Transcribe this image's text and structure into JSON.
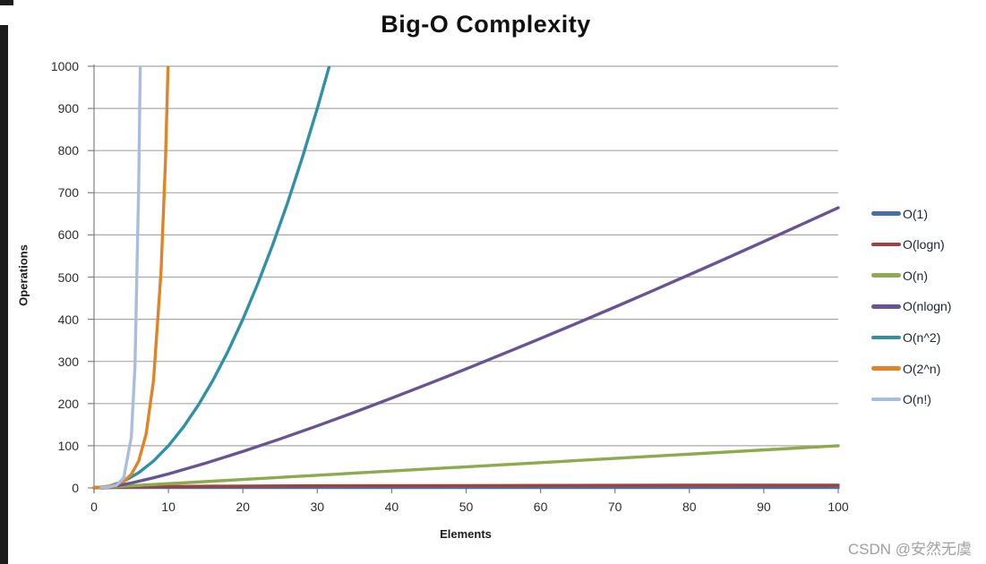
{
  "page": {
    "watermark": "CSDN @安然无虞"
  },
  "colors": {
    "grid": "#a8a8a8",
    "axis": "#808080",
    "title_text": "#101010",
    "tick_text": "#2d2d2d",
    "legend_text": "#1d2533",
    "watermark_text": "#a0a0a0",
    "left_strip": "#1c1c1c"
  },
  "chart_data": {
    "type": "line",
    "title": "Big-O Complexity",
    "xlabel": "Elements",
    "ylabel": "Operations",
    "xlim": [
      0,
      100
    ],
    "ylim": [
      0,
      1000
    ],
    "x_ticks": [
      0,
      10,
      20,
      30,
      40,
      50,
      60,
      70,
      80,
      90,
      100
    ],
    "y_ticks": [
      0,
      100,
      200,
      300,
      400,
      500,
      600,
      700,
      800,
      900,
      1000
    ],
    "grid": "horizontal-only",
    "legend_position": "right",
    "series": [
      {
        "name": "O(1)",
        "color": "#4472a4",
        "points": [
          [
            0,
            1
          ],
          [
            100,
            1
          ]
        ]
      },
      {
        "name": "O(logn)",
        "color": "#a2403d",
        "points": [
          [
            1,
            0
          ],
          [
            2,
            1
          ],
          [
            3,
            1.58
          ],
          [
            4,
            2
          ],
          [
            6,
            2.58
          ],
          [
            8,
            3
          ],
          [
            12,
            3.58
          ],
          [
            16,
            4
          ],
          [
            24,
            4.58
          ],
          [
            32,
            5
          ],
          [
            48,
            5.58
          ],
          [
            64,
            6
          ],
          [
            80,
            6.32
          ],
          [
            100,
            6.64
          ]
        ]
      },
      {
        "name": "O(n)",
        "color": "#8caa4e",
        "points": [
          [
            0,
            0
          ],
          [
            100,
            100
          ]
        ]
      },
      {
        "name": "O(nlogn)",
        "color": "#675591",
        "points": [
          [
            1,
            0
          ],
          [
            2,
            2
          ],
          [
            3,
            4.8
          ],
          [
            5,
            11.6
          ],
          [
            8,
            24
          ],
          [
            10,
            33.2
          ],
          [
            15,
            58.6
          ],
          [
            20,
            86.4
          ],
          [
            25,
            116.1
          ],
          [
            30,
            147.2
          ],
          [
            35,
            179.5
          ],
          [
            40,
            212.9
          ],
          [
            45,
            247.2
          ],
          [
            50,
            282.2
          ],
          [
            55,
            318.0
          ],
          [
            60,
            354.4
          ],
          [
            65,
            391.3
          ],
          [
            70,
            428.8
          ],
          [
            75,
            467.1
          ],
          [
            80,
            505.8
          ],
          [
            85,
            544.9
          ],
          [
            90,
            584.3
          ],
          [
            95,
            624.2
          ],
          [
            100,
            664.4
          ]
        ]
      },
      {
        "name": "O(n^2)",
        "color": "#3090a6",
        "points": [
          [
            0,
            0
          ],
          [
            2,
            4
          ],
          [
            4,
            16
          ],
          [
            6,
            36
          ],
          [
            8,
            64
          ],
          [
            10,
            100
          ],
          [
            12,
            144
          ],
          [
            14,
            196
          ],
          [
            16,
            256
          ],
          [
            18,
            324
          ],
          [
            20,
            400
          ],
          [
            22,
            484
          ],
          [
            24,
            576
          ],
          [
            26,
            676
          ],
          [
            28,
            784
          ],
          [
            30,
            900
          ],
          [
            32,
            1024
          ],
          [
            32.5,
            1060
          ]
        ]
      },
      {
        "name": "O(2^n)",
        "color": "#e08428",
        "points": [
          [
            0,
            1
          ],
          [
            1,
            2
          ],
          [
            2,
            4
          ],
          [
            3,
            8
          ],
          [
            4,
            16
          ],
          [
            5,
            32
          ],
          [
            6,
            64
          ],
          [
            7,
            128
          ],
          [
            8,
            256
          ],
          [
            9,
            512
          ],
          [
            9.6,
            776
          ],
          [
            10.1,
            1100
          ]
        ]
      },
      {
        "name": "O(n!)",
        "color": "#a9bede",
        "points": [
          [
            1,
            1
          ],
          [
            2,
            2
          ],
          [
            3,
            6
          ],
          [
            4,
            24
          ],
          [
            5,
            120
          ],
          [
            5.5,
            287
          ],
          [
            6,
            720
          ],
          [
            6.3,
            1130
          ]
        ]
      }
    ]
  }
}
